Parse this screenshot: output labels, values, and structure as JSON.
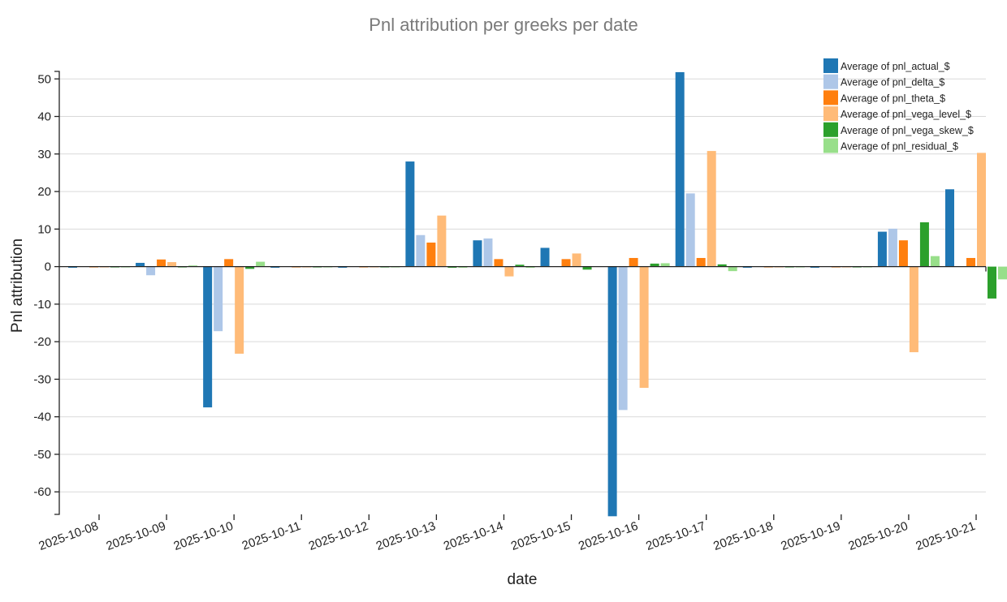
{
  "chart_data": {
    "type": "bar",
    "title": "Pnl attribution per greeks per date",
    "xlabel": "date",
    "ylabel": "Pnl attribution",
    "ylim": [
      -66,
      52
    ],
    "yticks": [
      50,
      40,
      30,
      20,
      10,
      0,
      -10,
      -20,
      -30,
      -40,
      -50,
      -60
    ],
    "grid": "horizontal",
    "legend_position": "top-right",
    "categories": [
      "2025-10-08",
      "2025-10-09",
      "2025-10-10",
      "2025-10-11",
      "2025-10-12",
      "2025-10-13",
      "2025-10-14",
      "2025-10-15",
      "2025-10-16",
      "2025-10-17",
      "2025-10-18",
      "2025-10-19",
      "2025-10-20",
      "2025-10-21"
    ],
    "series": [
      {
        "name": "Average of pnl_actual_$",
        "color": "#1f77b4",
        "values": [
          -0.3,
          1.0,
          -37.5,
          -0.3,
          -0.3,
          28.0,
          7.0,
          5.0,
          -66.5,
          51.8,
          -0.3,
          -0.3,
          9.3,
          20.6
        ]
      },
      {
        "name": "Average of pnl_delta_$",
        "color": "#aec7e8",
        "values": [
          0,
          -2.3,
          -17.2,
          0,
          0,
          8.4,
          7.5,
          0,
          -38.2,
          19.5,
          0,
          0,
          10.1,
          0
        ]
      },
      {
        "name": "Average of pnl_theta_$",
        "color": "#ff7f0e",
        "values": [
          -0.2,
          1.9,
          2.0,
          -0.2,
          -0.2,
          6.4,
          2.0,
          2.0,
          2.3,
          2.3,
          -0.2,
          -0.2,
          7.0,
          2.3
        ]
      },
      {
        "name": "Average of pnl_vega_level_$",
        "color": "#ffbb78",
        "values": [
          -0.2,
          1.2,
          -23.2,
          -0.2,
          -0.2,
          13.6,
          -2.6,
          3.5,
          -32.3,
          30.8,
          -0.2,
          -0.2,
          -22.8,
          30.3
        ]
      },
      {
        "name": "Average of pnl_vega_skew_$",
        "color": "#2ca02c",
        "values": [
          -0.2,
          -0.2,
          -0.6,
          -0.2,
          -0.2,
          -0.3,
          0.5,
          -0.8,
          0.8,
          0.6,
          -0.2,
          -0.2,
          11.8,
          -8.5
        ]
      },
      {
        "name": "Average of pnl_residual_$",
        "color": "#98df8a",
        "values": [
          -0.2,
          0.3,
          1.3,
          -0.2,
          -0.2,
          -0.3,
          -0.3,
          0,
          0.9,
          -1.2,
          -0.2,
          -0.2,
          2.8,
          -3.4
        ]
      }
    ]
  }
}
